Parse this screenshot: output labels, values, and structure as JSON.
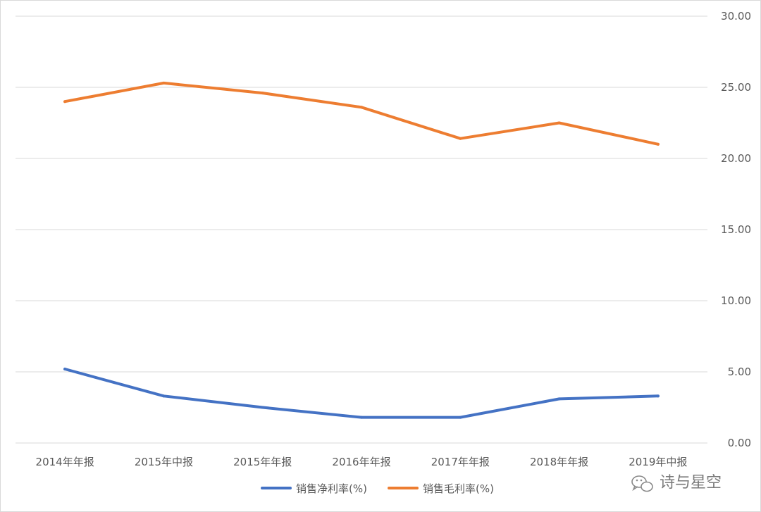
{
  "chart_data": {
    "type": "line",
    "categories": [
      "2014年年报",
      "2015年中报",
      "2015年年报",
      "2016年年报",
      "2017年年报",
      "2018年年报",
      "2019年中报"
    ],
    "series": [
      {
        "name": "销售净利率(%)",
        "color": "#4472c4",
        "values": [
          5.2,
          3.3,
          2.5,
          1.8,
          1.8,
          3.1,
          3.3
        ]
      },
      {
        "name": "销售毛利率(%)",
        "color": "#ed7d31",
        "values": [
          24.0,
          25.3,
          24.6,
          23.6,
          21.4,
          22.5,
          21.0
        ]
      }
    ],
    "y_ticks": [
      "0.00",
      "5.00",
      "10.00",
      "15.00",
      "20.00",
      "25.00",
      "30.00"
    ],
    "ylim": [
      0,
      30
    ],
    "y_axis_side": "right",
    "grid": true,
    "legend_position": "bottom-center",
    "title": "",
    "xlabel": "",
    "ylabel": ""
  },
  "watermark": {
    "icon": "wechat-icon",
    "text": "诗与星空"
  }
}
